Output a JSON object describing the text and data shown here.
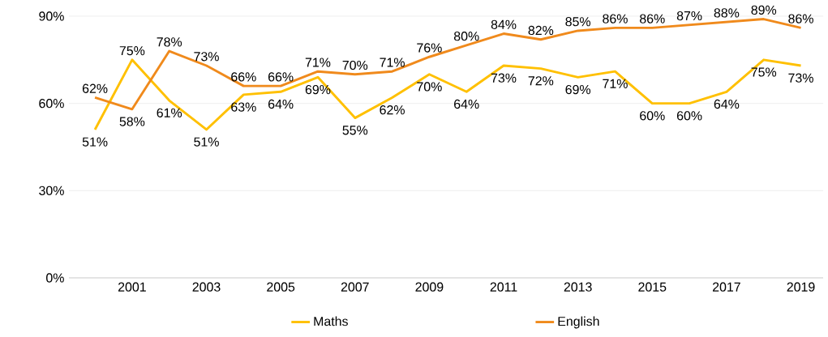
{
  "chart_data": {
    "type": "line",
    "x": [
      2000,
      2001,
      2002,
      2003,
      2004,
      2005,
      2006,
      2007,
      2008,
      2009,
      2010,
      2011,
      2012,
      2013,
      2014,
      2015,
      2016,
      2017,
      2018,
      2019
    ],
    "series": [
      {
        "name": "Maths",
        "color": "#ffc000",
        "values": [
          51,
          75,
          61,
          51,
          63,
          64,
          69,
          55,
          62,
          70,
          64,
          73,
          72,
          69,
          71,
          60,
          60,
          64,
          75,
          73
        ],
        "value_labels": [
          "51%",
          "75%",
          "61%",
          "51%",
          "63%",
          "64%",
          "69%",
          "55%",
          "62%",
          "70%",
          "64%",
          "73%",
          "72%",
          "69%",
          "71%",
          "60%",
          "60%",
          "64%",
          "75%",
          "73%"
        ]
      },
      {
        "name": "English",
        "color": "#f08a1c",
        "values": [
          62,
          58,
          78,
          73,
          66,
          66,
          71,
          70,
          71,
          76,
          80,
          84,
          82,
          85,
          86,
          86,
          87,
          88,
          89,
          86
        ],
        "value_labels": [
          "62%",
          "58%",
          "78%",
          "73%",
          "66%",
          "66%",
          "71%",
          "70%",
          "71%",
          "76%",
          "80%",
          "84%",
          "82%",
          "85%",
          "86%",
          "86%",
          "87%",
          "88%",
          "89%",
          "86%"
        ]
      }
    ],
    "xlim": [
      1999.3,
      2019.6
    ],
    "xticks": [
      2001,
      2003,
      2005,
      2007,
      2009,
      2011,
      2013,
      2015,
      2017,
      2019
    ],
    "ylim": [
      0,
      90
    ],
    "yticks": [
      {
        "value": 0,
        "label": "0%"
      },
      {
        "value": 30,
        "label": "30%"
      },
      {
        "value": 60,
        "label": "60%"
      },
      {
        "value": 90,
        "label": "90%"
      }
    ],
    "grid": "y",
    "legend": "bottom",
    "marker": "none",
    "line_style": "solid"
  }
}
